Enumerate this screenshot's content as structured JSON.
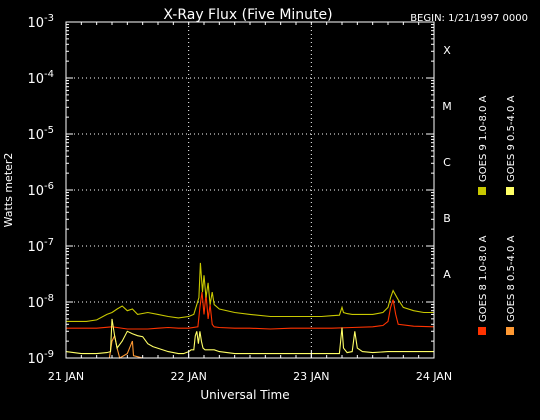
{
  "chart_data": {
    "type": "line",
    "title": "X-Ray Flux (Five Minute)",
    "begin_label": "BEGIN: 1/21/1997 0000",
    "xlabel": "Universal Time",
    "ylabel": "Watts meter2",
    "y_scale": "log",
    "ylim": [
      1e-09,
      0.001
    ],
    "xlim": [
      0,
      72
    ],
    "x_ticks": [
      {
        "x": 0,
        "label": "21 JAN"
      },
      {
        "x": 24,
        "label": "22 JAN"
      },
      {
        "x": 48,
        "label": "23 JAN"
      },
      {
        "x": 72,
        "label": "24 JAN"
      }
    ],
    "y_ticks": [
      {
        "exp": -3,
        "base": "10",
        "sup": "-3"
      },
      {
        "exp": -4,
        "base": "10",
        "sup": "-4"
      },
      {
        "exp": -5,
        "base": "10",
        "sup": "-5"
      },
      {
        "exp": -6,
        "base": "10",
        "sup": "-6"
      },
      {
        "exp": -7,
        "base": "10",
        "sup": "-7"
      },
      {
        "exp": -8,
        "base": "10",
        "sup": "-8"
      },
      {
        "exp": -9,
        "base": "10",
        "sup": "-9"
      }
    ],
    "class_labels": [
      {
        "label": "X",
        "exp": -4
      },
      {
        "label": "M",
        "exp": -5
      },
      {
        "label": "C",
        "exp": -6
      },
      {
        "label": "B",
        "exp": -7
      },
      {
        "label": "A",
        "exp": -8
      }
    ],
    "grid": {
      "horizontal": true,
      "vertical_at_x": [
        24,
        48
      ]
    },
    "legend_placement": "right, vertical",
    "series": [
      {
        "name": "GOES 8 1.0-8.0 A",
        "color": "#ff3300",
        "x": [
          0,
          6,
          9,
          10,
          12,
          16,
          18,
          20,
          22,
          24,
          25.8,
          26.2,
          26.6,
          27,
          27.4,
          27.8,
          28.2,
          28.6,
          29,
          30,
          33,
          36,
          40,
          44,
          48,
          52,
          56,
          60,
          62,
          63,
          63.5,
          64,
          64.5,
          65,
          68,
          72
        ],
        "y": [
          3.4e-09,
          3.4e-09,
          3.6e-09,
          3.5e-09,
          3.3e-09,
          3.3e-09,
          3.4e-09,
          3.5e-09,
          3.4e-09,
          3.4e-09,
          3.6e-09,
          8e-09,
          1.5e-08,
          6e-09,
          1.4e-08,
          5e-09,
          9e-09,
          4e-09,
          3.6e-09,
          3.5e-09,
          3.4e-09,
          3.4e-09,
          3.3e-09,
          3.4e-09,
          3.4e-09,
          3.4e-09,
          3.5e-09,
          3.6e-09,
          3.8e-09,
          4.5e-09,
          8e-09,
          1.1e-08,
          6e-09,
          4e-09,
          3.7e-09,
          3.6e-09
        ]
      },
      {
        "name": "GOES 8 0.5-4.0 A",
        "color": "#ff9933",
        "x": [
          8.5,
          9,
          9.5,
          10,
          10.5,
          12,
          13,
          13.2,
          15,
          18,
          22,
          24,
          26,
          27.5,
          28
        ],
        "y": [
          1e-09,
          2e-09,
          2.5e-09,
          1.5e-09,
          1e-09,
          1.2e-09,
          2e-09,
          1.1e-09,
          1e-09,
          1e-09,
          1e-09,
          1e-09,
          1e-09,
          1e-09,
          1e-09
        ]
      },
      {
        "name": "GOES 9 0.5-4.0 A",
        "color": "#ffff66",
        "x": [
          0,
          3,
          6,
          8,
          8.7,
          9,
          9.5,
          10,
          11,
          12,
          13,
          14,
          15,
          16,
          17,
          20,
          22,
          23,
          24,
          24.5,
          25,
          25.3,
          25.6,
          25.9,
          26.2,
          26.5,
          26.8,
          27.2,
          27.6,
          28,
          29,
          30,
          33,
          36,
          40,
          44,
          48,
          50,
          52,
          53.5,
          54,
          54.3,
          55,
          56,
          56.5,
          57,
          58,
          60,
          63,
          64,
          65,
          68,
          72
        ],
        "y": [
          1.3e-09,
          1.2e-09,
          1.2e-09,
          1.25e-09,
          1.3e-09,
          5e-09,
          2.5e-09,
          1.5e-09,
          2e-09,
          3e-09,
          2.7e-09,
          2.5e-09,
          2.4e-09,
          1.8e-09,
          1.6e-09,
          1.3e-09,
          1.2e-09,
          1.2e-09,
          1.3e-09,
          1.4e-09,
          1.4e-09,
          2.5e-09,
          3e-09,
          1.8e-09,
          3e-09,
          2e-09,
          1.5e-09,
          1.4e-09,
          1.4e-09,
          1.4e-09,
          1.4e-09,
          1.3e-09,
          1.2e-09,
          1.2e-09,
          1.2e-09,
          1.2e-09,
          1.2e-09,
          1.2e-09,
          1.2e-09,
          1.2e-09,
          3.5e-09,
          1.5e-09,
          1.25e-09,
          1.3e-09,
          3e-09,
          1.5e-09,
          1.3e-09,
          1.25e-09,
          1.3e-09,
          1.3e-09,
          1.3e-09,
          1.3e-09,
          1.3e-09
        ]
      },
      {
        "name": "GOES 9 1.0-8.0 A",
        "color": "#c8c800",
        "x": [
          0,
          4,
          6,
          8,
          9,
          10,
          11,
          12,
          13,
          14,
          16,
          18,
          20,
          22,
          24,
          25,
          26,
          26.3,
          26.7,
          27,
          27.4,
          27.8,
          28.2,
          28.6,
          29,
          30,
          33,
          36,
          40,
          44,
          48,
          50,
          52,
          53.5,
          54,
          54.3,
          55,
          56,
          60,
          62,
          63,
          63.5,
          64,
          65,
          66,
          68,
          70,
          72
        ],
        "y": [
          4.5e-09,
          4.5e-09,
          4.8e-09,
          6e-09,
          6.5e-09,
          7.5e-09,
          8.5e-09,
          7e-09,
          7.5e-09,
          6e-09,
          6.5e-09,
          6e-09,
          5.5e-09,
          5.2e-09,
          5.5e-09,
          6e-09,
          1.2e-08,
          5e-08,
          1.5e-08,
          3e-08,
          1.2e-08,
          2.2e-08,
          9e-09,
          1.5e-08,
          9e-09,
          7.5e-09,
          6.5e-09,
          6e-09,
          5.5e-09,
          5.5e-09,
          5.5e-09,
          5.5e-09,
          5.7e-09,
          5.8e-09,
          8e-09,
          6.5e-09,
          6.2e-09,
          6e-09,
          6e-09,
          6.5e-09,
          8e-09,
          1.2e-08,
          1.6e-08,
          1.1e-08,
          8e-09,
          7e-09,
          6.5e-09,
          6.5e-09
        ]
      }
    ]
  }
}
